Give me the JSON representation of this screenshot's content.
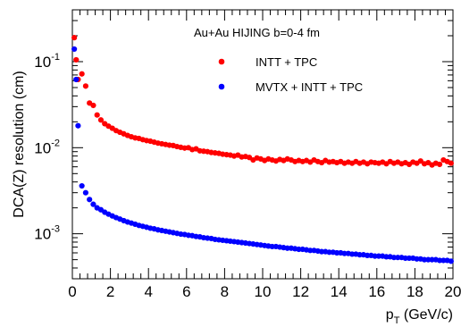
{
  "chart_data": {
    "type": "scatter",
    "title": "Au+Au HIJING b=0-4 fm",
    "xlabel_main": "p",
    "xlabel_sub": "T",
    "xlabel_unit": " (GeV/c)",
    "ylabel": "DCA(Z) resolution (cm)",
    "xlim": [
      0,
      20
    ],
    "ylim": [
      0.0003,
      0.4
    ],
    "yscale": "log",
    "x_ticks": [
      0,
      2,
      4,
      6,
      8,
      10,
      12,
      14,
      16,
      18,
      20
    ],
    "y_tick_labels": [
      {
        "base": "10",
        "exp": "-3",
        "value": 0.001
      },
      {
        "base": "10",
        "exp": "-2",
        "value": 0.01
      },
      {
        "base": "10",
        "exp": "-1",
        "value": 0.1
      }
    ],
    "legend_position": "top-center",
    "series": [
      {
        "name": "INTT + TPC",
        "color": "#ff0000",
        "points": [
          [
            0.1,
            0.19
          ],
          [
            0.2,
            0.105
          ],
          [
            0.3,
            0.062
          ],
          [
            0.5,
            0.072
          ],
          [
            0.7,
            0.052
          ],
          [
            0.9,
            0.033
          ],
          [
            1.1,
            0.031
          ],
          [
            1.3,
            0.024
          ],
          [
            1.5,
            0.021
          ],
          [
            1.7,
            0.019
          ],
          [
            1.9,
            0.0178
          ],
          [
            2.1,
            0.0168
          ],
          [
            2.3,
            0.0158
          ],
          [
            2.5,
            0.0151
          ],
          [
            2.7,
            0.0145
          ],
          [
            2.9,
            0.0139
          ],
          [
            3.1,
            0.0134
          ],
          [
            3.3,
            0.013
          ],
          [
            3.5,
            0.0128
          ],
          [
            3.7,
            0.0124
          ],
          [
            3.9,
            0.0121
          ],
          [
            4.1,
            0.0119
          ],
          [
            4.3,
            0.0116
          ],
          [
            4.5,
            0.0113
          ],
          [
            4.7,
            0.0111
          ],
          [
            4.9,
            0.0109
          ],
          [
            5.1,
            0.0107
          ],
          [
            5.3,
            0.0106
          ],
          [
            5.5,
            0.0103
          ],
          [
            5.7,
            0.0101
          ],
          [
            5.9,
            0.0099
          ],
          [
            6.1,
            0.01
          ],
          [
            6.3,
            0.0095
          ],
          [
            6.5,
            0.0097
          ],
          [
            6.7,
            0.0092
          ],
          [
            6.9,
            0.0091
          ],
          [
            7.1,
            0.009
          ],
          [
            7.3,
            0.0088
          ],
          [
            7.5,
            0.0087
          ],
          [
            7.7,
            0.0086
          ],
          [
            7.9,
            0.0084
          ],
          [
            8.1,
            0.0083
          ],
          [
            8.3,
            0.0082
          ],
          [
            8.5,
            0.008
          ],
          [
            8.7,
            0.0082
          ],
          [
            8.9,
            0.0078
          ],
          [
            9.1,
            0.0079
          ],
          [
            9.3,
            0.0077
          ],
          [
            9.5,
            0.0072
          ],
          [
            9.7,
            0.0076
          ],
          [
            9.9,
            0.0074
          ],
          [
            10.1,
            0.0071
          ],
          [
            10.3,
            0.0074
          ],
          [
            10.5,
            0.0072
          ],
          [
            10.7,
            0.007
          ],
          [
            10.9,
            0.0073
          ],
          [
            11.1,
            0.0071
          ],
          [
            11.3,
            0.0074
          ],
          [
            11.5,
            0.0072
          ],
          [
            11.7,
            0.0069
          ],
          [
            11.9,
            0.0071
          ],
          [
            12.1,
            0.0069
          ],
          [
            12.3,
            0.0071
          ],
          [
            12.5,
            0.0068
          ],
          [
            12.7,
            0.0072
          ],
          [
            12.9,
            0.0069
          ],
          [
            13.1,
            0.0067
          ],
          [
            13.3,
            0.0071
          ],
          [
            13.5,
            0.0068
          ],
          [
            13.7,
            0.0069
          ],
          [
            13.9,
            0.0067
          ],
          [
            14.1,
            0.0069
          ],
          [
            14.3,
            0.0066
          ],
          [
            14.5,
            0.0068
          ],
          [
            14.7,
            0.0066
          ],
          [
            14.9,
            0.0069
          ],
          [
            15.1,
            0.0066
          ],
          [
            15.3,
            0.0068
          ],
          [
            15.5,
            0.0065
          ],
          [
            15.7,
            0.0068
          ],
          [
            15.9,
            0.0067
          ],
          [
            16.1,
            0.0066
          ],
          [
            16.3,
            0.0068
          ],
          [
            16.5,
            0.0065
          ],
          [
            16.7,
            0.0069
          ],
          [
            16.9,
            0.0066
          ],
          [
            17.1,
            0.0068
          ],
          [
            17.3,
            0.0065
          ],
          [
            17.5,
            0.0067
          ],
          [
            17.7,
            0.0064
          ],
          [
            17.9,
            0.0068
          ],
          [
            18.1,
            0.0066
          ],
          [
            18.3,
            0.007
          ],
          [
            18.5,
            0.0065
          ],
          [
            18.7,
            0.0067
          ],
          [
            18.9,
            0.0063
          ],
          [
            19.1,
            0.0066
          ],
          [
            19.3,
            0.0064
          ],
          [
            19.5,
            0.0072
          ],
          [
            19.7,
            0.0069
          ],
          [
            19.9,
            0.0066
          ]
        ]
      },
      {
        "name": "MVTX + INTT + TPC",
        "color": "#0000ff",
        "points": [
          [
            0.1,
            0.14
          ],
          [
            0.2,
            0.062
          ],
          [
            0.3,
            0.018
          ],
          [
            0.5,
            0.0036
          ],
          [
            0.7,
            0.003
          ],
          [
            0.9,
            0.0025
          ],
          [
            1.1,
            0.0022
          ],
          [
            1.3,
            0.002
          ],
          [
            1.5,
            0.0019
          ],
          [
            1.7,
            0.00178
          ],
          [
            1.9,
            0.00169
          ],
          [
            2.1,
            0.00161
          ],
          [
            2.3,
            0.00154
          ],
          [
            2.5,
            0.00148
          ],
          [
            2.7,
            0.00142
          ],
          [
            2.9,
            0.00137
          ],
          [
            3.1,
            0.00133
          ],
          [
            3.3,
            0.00129
          ],
          [
            3.5,
            0.00125
          ],
          [
            3.7,
            0.00122
          ],
          [
            3.9,
            0.00119
          ],
          [
            4.1,
            0.00116
          ],
          [
            4.3,
            0.00114
          ],
          [
            4.5,
            0.00111
          ],
          [
            4.7,
            0.00109
          ],
          [
            4.9,
            0.00107
          ],
          [
            5.1,
            0.00105
          ],
          [
            5.3,
            0.00103
          ],
          [
            5.5,
            0.00101
          ],
          [
            5.7,
            0.00099
          ],
          [
            5.9,
            0.00098
          ],
          [
            6.1,
            0.00096
          ],
          [
            6.3,
            0.00095
          ],
          [
            6.5,
            0.00093
          ],
          [
            6.7,
            0.00092
          ],
          [
            6.9,
            0.0009
          ],
          [
            7.1,
            0.00089
          ],
          [
            7.3,
            0.00088
          ],
          [
            7.5,
            0.00086
          ],
          [
            7.7,
            0.00085
          ],
          [
            7.9,
            0.00084
          ],
          [
            8.1,
            0.00083
          ],
          [
            8.3,
            0.00082
          ],
          [
            8.5,
            0.00081
          ],
          [
            8.7,
            0.0008
          ],
          [
            8.9,
            0.00079
          ],
          [
            9.1,
            0.00078
          ],
          [
            9.3,
            0.00077
          ],
          [
            9.5,
            0.00076
          ],
          [
            9.7,
            0.00075
          ],
          [
            9.9,
            0.00074
          ],
          [
            10.1,
            0.00073
          ],
          [
            10.3,
            0.00072
          ],
          [
            10.5,
            0.00071
          ],
          [
            10.7,
            0.00071
          ],
          [
            10.9,
            0.0007
          ],
          [
            11.1,
            0.00069
          ],
          [
            11.3,
            0.00068
          ],
          [
            11.5,
            0.00068
          ],
          [
            11.7,
            0.00067
          ],
          [
            11.9,
            0.00066
          ],
          [
            12.1,
            0.00066
          ],
          [
            12.3,
            0.00065
          ],
          [
            12.5,
            0.00064
          ],
          [
            12.7,
            0.00064
          ],
          [
            12.9,
            0.00063
          ],
          [
            13.1,
            0.00062
          ],
          [
            13.3,
            0.00062
          ],
          [
            13.5,
            0.00061
          ],
          [
            13.7,
            0.00061
          ],
          [
            13.9,
            0.0006
          ],
          [
            14.1,
            0.0006
          ],
          [
            14.3,
            0.00059
          ],
          [
            14.5,
            0.00059
          ],
          [
            14.7,
            0.00058
          ],
          [
            14.9,
            0.00058
          ],
          [
            15.1,
            0.00057
          ],
          [
            15.3,
            0.00057
          ],
          [
            15.5,
            0.00056
          ],
          [
            15.7,
            0.00056
          ],
          [
            15.9,
            0.00055
          ],
          [
            16.1,
            0.00055
          ],
          [
            16.3,
            0.00055
          ],
          [
            16.5,
            0.00054
          ],
          [
            16.7,
            0.00054
          ],
          [
            16.9,
            0.00053
          ],
          [
            17.1,
            0.00053
          ],
          [
            17.3,
            0.00053
          ],
          [
            17.5,
            0.00052
          ],
          [
            17.7,
            0.00052
          ],
          [
            17.9,
            0.00052
          ],
          [
            18.1,
            0.00051
          ],
          [
            18.3,
            0.00051
          ],
          [
            18.5,
            0.0005
          ],
          [
            18.7,
            0.0005
          ],
          [
            18.9,
            0.0005
          ],
          [
            19.1,
            0.0005
          ],
          [
            19.3,
            0.00049
          ],
          [
            19.5,
            0.00049
          ],
          [
            19.7,
            0.00049
          ],
          [
            19.9,
            0.00048
          ]
        ]
      }
    ]
  }
}
